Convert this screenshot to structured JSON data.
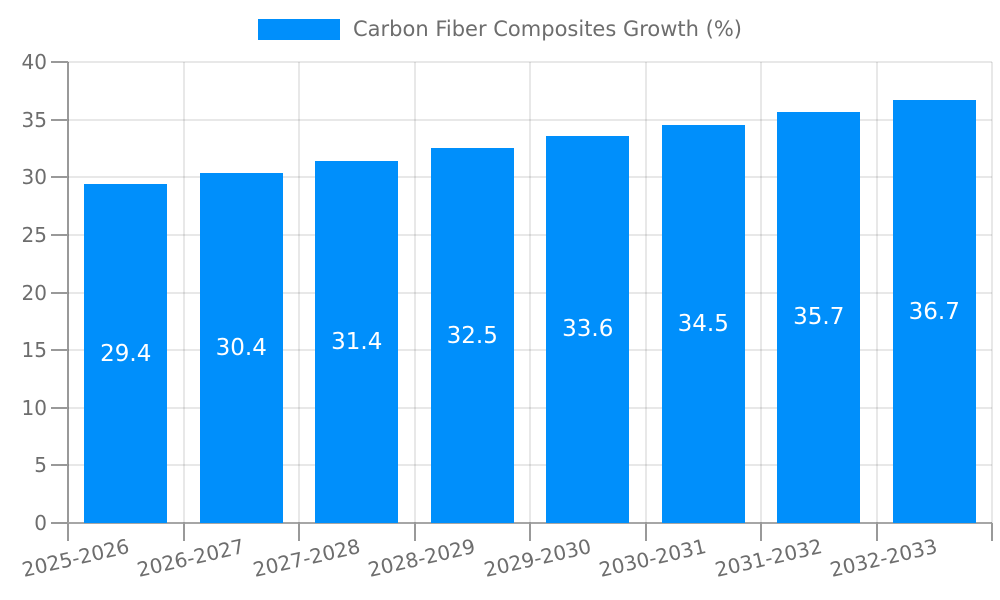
{
  "legend": {
    "items": [
      {
        "label": "Carbon Fiber Composites Growth (%)",
        "swatch_color": "#008FFB"
      }
    ]
  },
  "chart_data": {
    "type": "bar",
    "title": "Carbon Fiber Composites Growth (%)",
    "categories": [
      "2025-2026",
      "2026-2027",
      "2027-2028",
      "2028-2029",
      "2029-2030",
      "2030-2031",
      "2031-2032",
      "2032-2033"
    ],
    "values": [
      29.4,
      30.4,
      31.4,
      32.5,
      33.6,
      34.5,
      35.7,
      36.7
    ],
    "series": [
      {
        "name": "Carbon Fiber Composites Growth (%)",
        "values": [
          29.4,
          30.4,
          31.4,
          32.5,
          33.6,
          34.5,
          35.7,
          36.7
        ]
      }
    ],
    "value_labels": [
      "29.4",
      "30.4",
      "31.4",
      "32.5",
      "33.6",
      "34.5",
      "35.7",
      "36.7"
    ],
    "xlabel": "",
    "ylabel": "",
    "ylim": [
      0,
      40
    ],
    "yticks": [
      0,
      5,
      10,
      15,
      20,
      25,
      30,
      35,
      40
    ],
    "grid": true,
    "legend_position": "top-center",
    "value_label_position": "inside-center",
    "x_label_rotation_deg": -13,
    "colors": {
      "bar": "#008FFB",
      "value_label": "#FFFFFF",
      "axis": "#999999",
      "grid": "rgba(0,0,0,0.09)",
      "tick_label": "#6D6D6D",
      "legend_text": "#6D6D6D",
      "background": "#FFFFFF"
    }
  }
}
